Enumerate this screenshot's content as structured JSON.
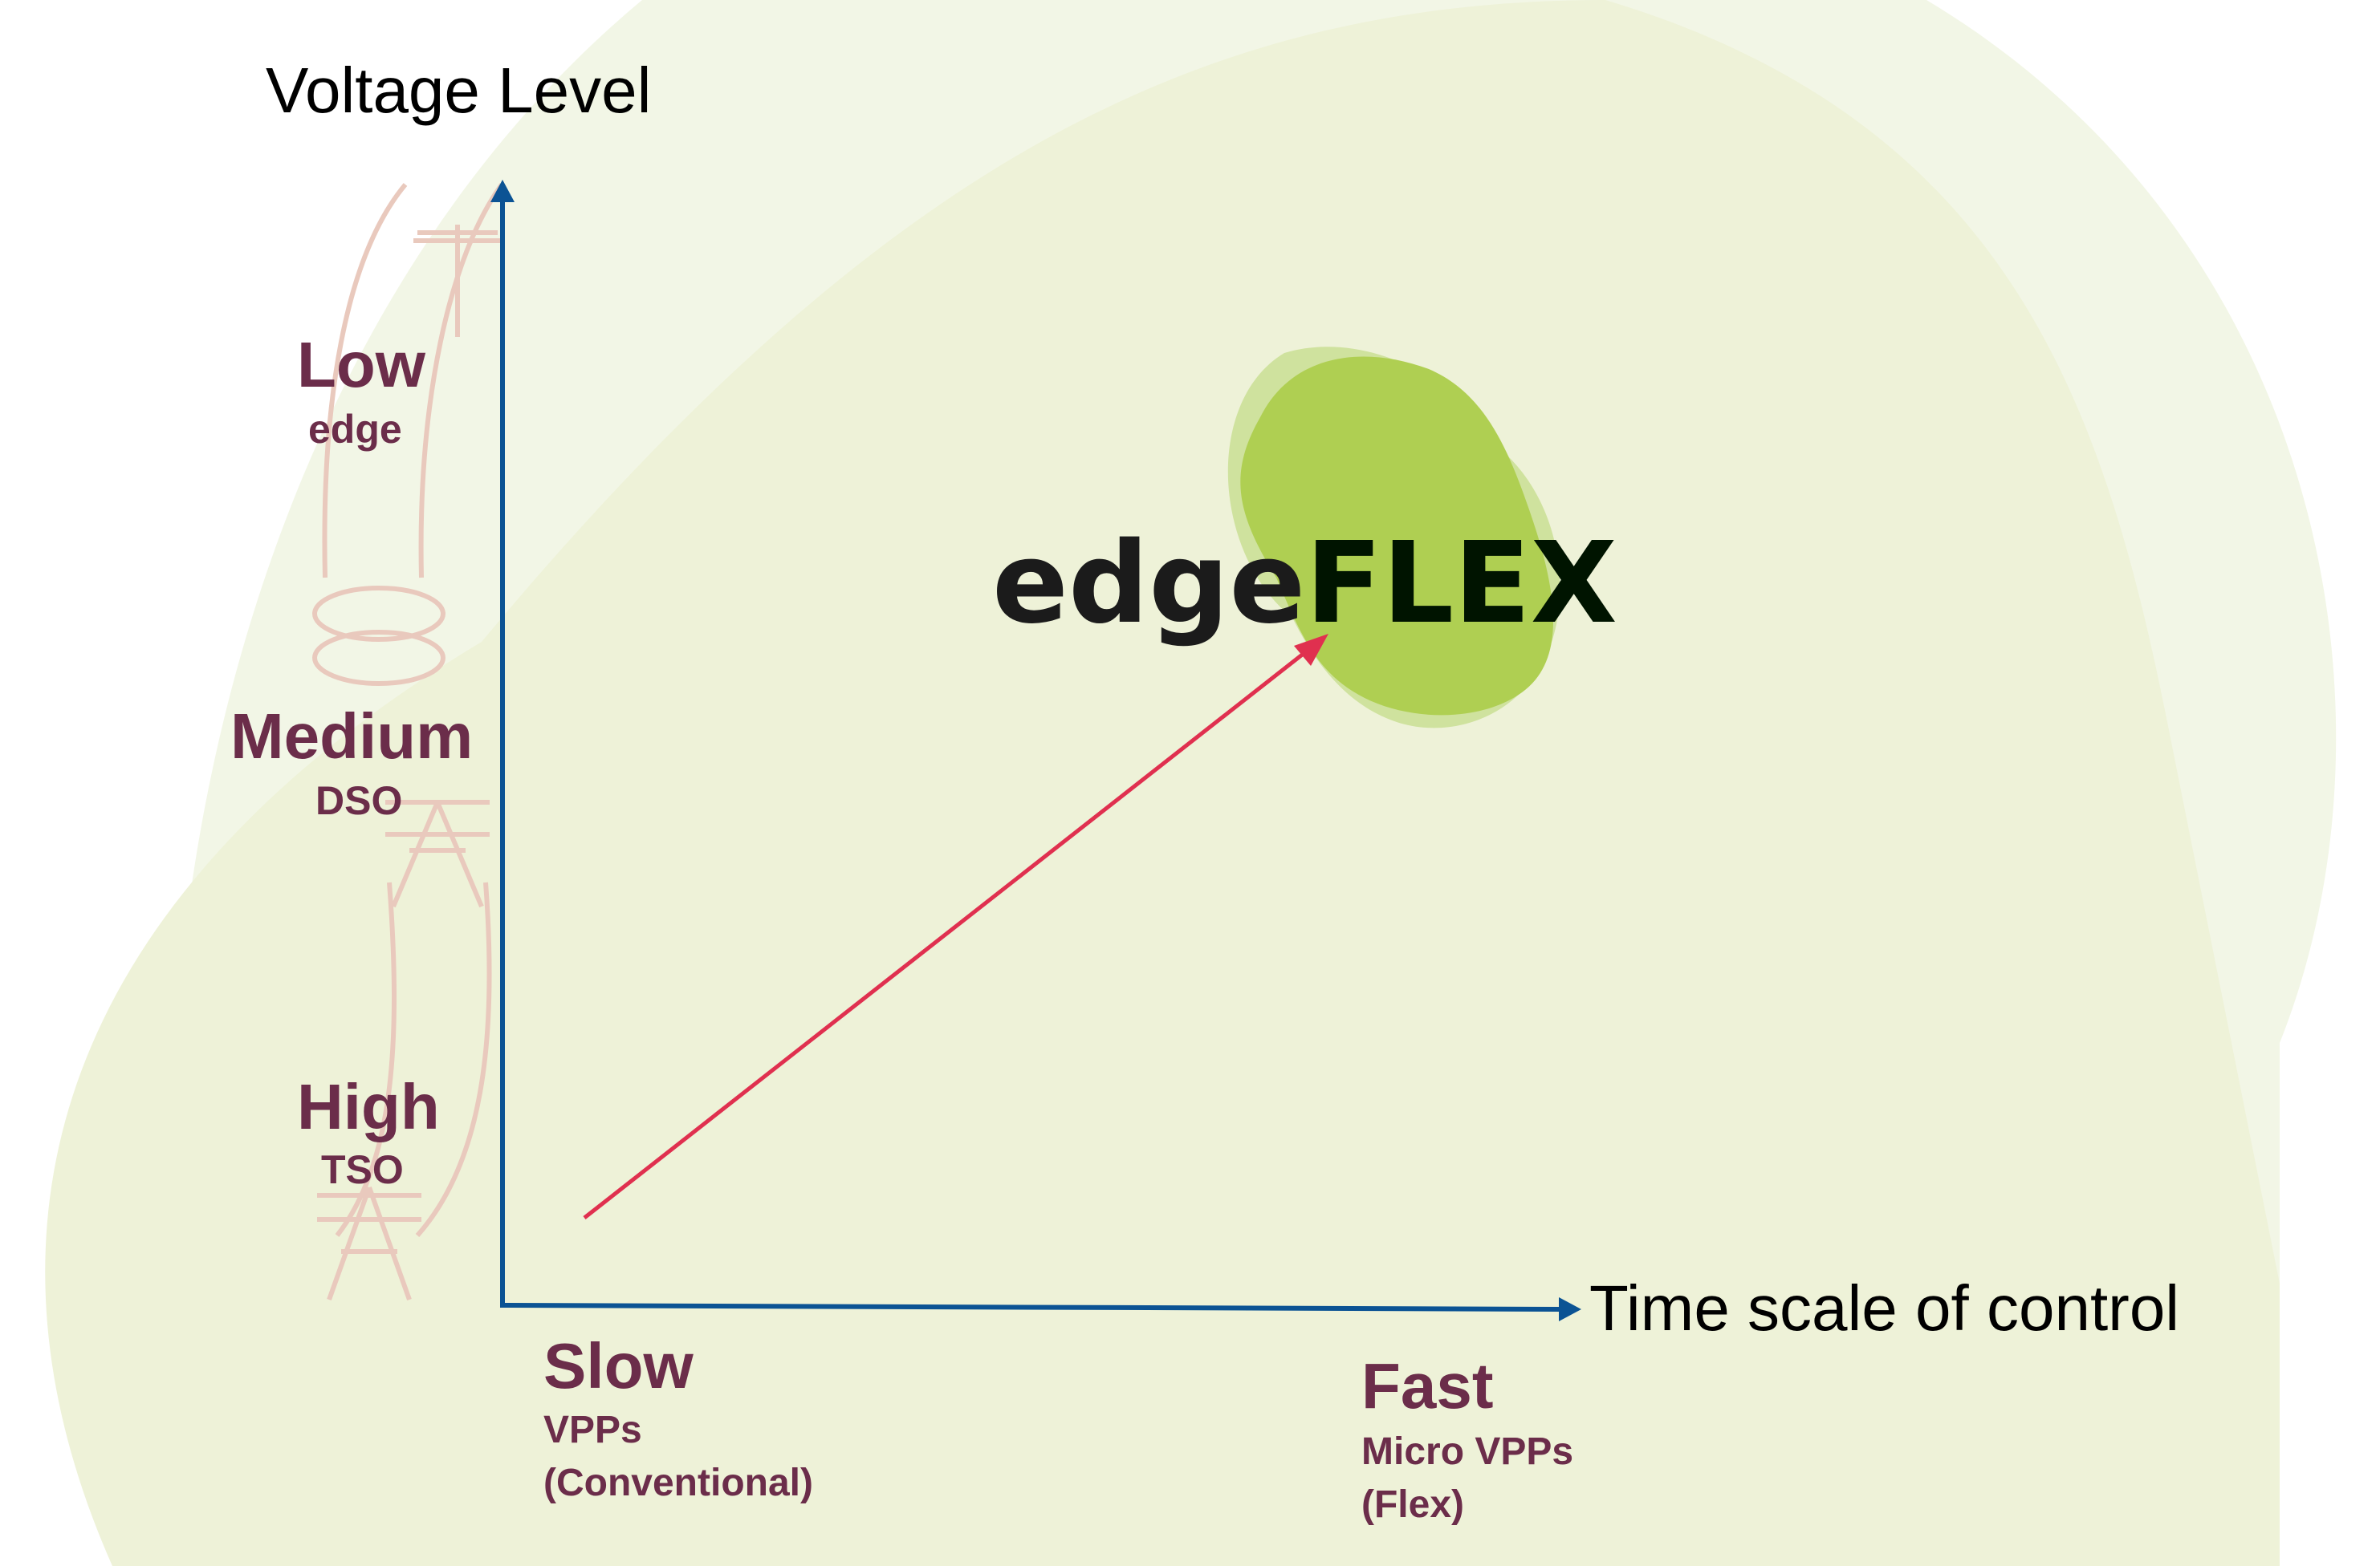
{
  "y_axis": {
    "title": "Voltage Level"
  },
  "x_axis": {
    "title": "Time scale of control"
  },
  "voltage_levels": [
    {
      "level": "Low",
      "sub": "edge"
    },
    {
      "level": "Medium",
      "sub": "DSO"
    },
    {
      "level": "High",
      "sub": "TSO"
    }
  ],
  "time_scales": [
    {
      "speed": "Slow",
      "line1": "VPPs",
      "line2": "(Conventional)"
    },
    {
      "speed": "Fast",
      "line1": "Micro VPPs",
      "line2": "(Flex)"
    }
  ],
  "logo": {
    "part1": "edge",
    "part2": "FLEX"
  },
  "colors": {
    "axis": "#0b5394",
    "arrow": "#e0304f",
    "labels": "#6b2d4a",
    "logo_blob": "#afcf52",
    "background": "#eef2d8"
  }
}
